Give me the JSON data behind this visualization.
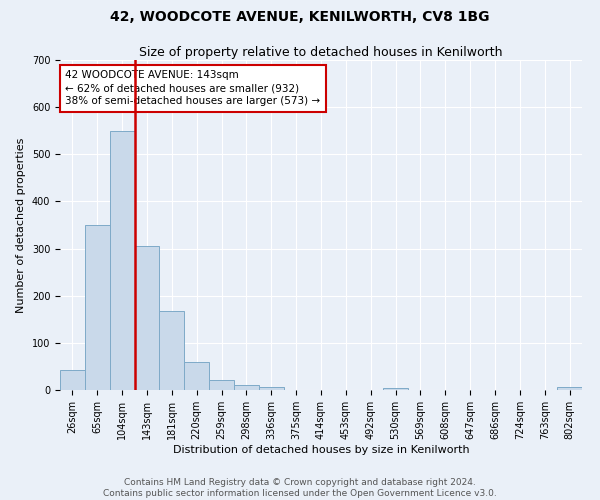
{
  "title": "42, WOODCOTE AVENUE, KENILWORTH, CV8 1BG",
  "subtitle": "Size of property relative to detached houses in Kenilworth",
  "xlabel": "Distribution of detached houses by size in Kenilworth",
  "ylabel": "Number of detached properties",
  "bar_labels": [
    "26sqm",
    "65sqm",
    "104sqm",
    "143sqm",
    "181sqm",
    "220sqm",
    "259sqm",
    "298sqm",
    "336sqm",
    "375sqm",
    "414sqm",
    "453sqm",
    "492sqm",
    "530sqm",
    "569sqm",
    "608sqm",
    "647sqm",
    "686sqm",
    "724sqm",
    "763sqm",
    "802sqm"
  ],
  "bar_values": [
    42,
    350,
    550,
    305,
    168,
    60,
    22,
    11,
    6,
    0,
    0,
    0,
    0,
    5,
    0,
    0,
    0,
    0,
    0,
    0,
    6
  ],
  "bar_color": "#c9d9ea",
  "bar_edge_color": "#7eaac8",
  "property_size_bin_index": 3,
  "vline_color": "#cc0000",
  "annotation_text": "42 WOODCOTE AVENUE: 143sqm\n← 62% of detached houses are smaller (932)\n38% of semi-detached houses are larger (573) →",
  "annotation_box_color": "#ffffff",
  "annotation_box_edge_color": "#cc0000",
  "ylim": [
    0,
    700
  ],
  "yticks": [
    0,
    100,
    200,
    300,
    400,
    500,
    600,
    700
  ],
  "footer_text": "Contains HM Land Registry data © Crown copyright and database right 2024.\nContains public sector information licensed under the Open Government Licence v3.0.",
  "bg_color": "#eaf0f8",
  "plot_bg_color": "#eaf0f8",
  "grid_color": "#ffffff",
  "title_fontsize": 10,
  "subtitle_fontsize": 9,
  "axis_label_fontsize": 8,
  "tick_fontsize": 7,
  "annotation_fontsize": 7.5,
  "footer_fontsize": 6.5
}
